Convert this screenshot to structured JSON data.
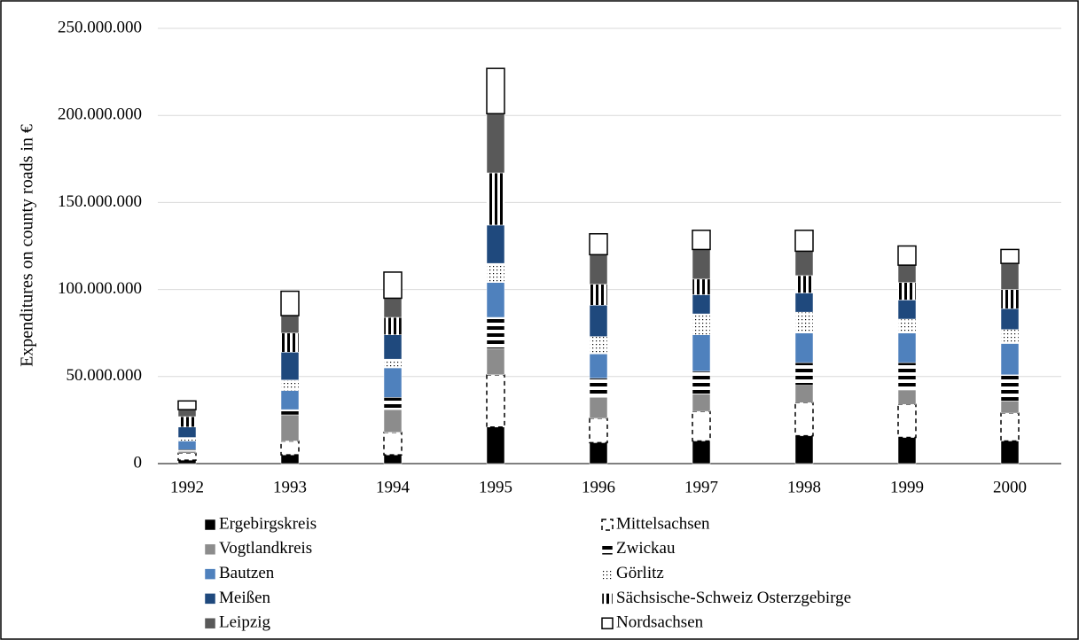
{
  "chart_data": {
    "type": "stacked-bar",
    "y_label": "Expenditures on county roads in €",
    "categories": [
      "1992",
      "1993",
      "1994",
      "1995",
      "1996",
      "1997",
      "1998",
      "1999",
      "2000"
    ],
    "ylim": [
      0,
      250000000
    ],
    "yticks": [
      0,
      {
        "value": 50000000,
        "label": "50.000.000"
      },
      {
        "value": 100000000,
        "label": "100.000.000"
      },
      {
        "value": 150000000,
        "label": "150.000.000"
      },
      {
        "value": 200000000,
        "label": "200.000.000"
      },
      {
        "value": 250000000,
        "label": "250.000.000"
      }
    ],
    "grid": true,
    "legend": "bottom",
    "series": [
      {
        "name": "Ergebirgskreis",
        "color": "#000000",
        "pattern": "solid",
        "values": [
          2000000,
          5000000,
          5000000,
          21000000,
          12000000,
          13000000,
          16000000,
          15000000,
          13000000
        ]
      },
      {
        "name": "Mittelsachsen",
        "color": "#ffffff",
        "pattern": "dash-outline",
        "values": [
          4000000,
          8000000,
          13000000,
          30000000,
          14000000,
          17000000,
          19000000,
          19000000,
          16000000
        ]
      },
      {
        "name": "Vogtlandkreis",
        "color": "#8c8c8c",
        "pattern": "solid",
        "values": [
          1000000,
          15000000,
          13000000,
          15000000,
          12000000,
          10000000,
          10000000,
          8000000,
          7000000
        ]
      },
      {
        "name": "Zwickau",
        "color": "#000000",
        "pattern": "hstripe",
        "values": [
          1000000,
          3000000,
          7000000,
          18000000,
          11000000,
          13000000,
          13000000,
          16000000,
          15000000
        ]
      },
      {
        "name": "Bautzen",
        "color": "#4f81bd",
        "pattern": "solid",
        "values": [
          5000000,
          11000000,
          17000000,
          20000000,
          14000000,
          21000000,
          17000000,
          17000000,
          18000000
        ]
      },
      {
        "name": "Görlitz",
        "color": "#000000",
        "pattern": "dots",
        "values": [
          2000000,
          6000000,
          5000000,
          11000000,
          10000000,
          12000000,
          12000000,
          8000000,
          8000000
        ]
      },
      {
        "name": "Meißen",
        "color": "#1f497d",
        "pattern": "solid",
        "values": [
          6000000,
          16000000,
          14000000,
          22000000,
          18000000,
          11000000,
          11000000,
          11000000,
          12000000
        ]
      },
      {
        "name": "Sächsische-Schweiz Osterzgebirge",
        "color": "#000000",
        "pattern": "vstripe",
        "values": [
          6000000,
          11000000,
          10000000,
          30000000,
          12000000,
          9000000,
          10000000,
          10000000,
          11000000
        ]
      },
      {
        "name": "Leipzig",
        "color": "#595959",
        "pattern": "solid",
        "values": [
          4000000,
          10000000,
          11000000,
          34000000,
          17000000,
          17000000,
          14000000,
          10000000,
          15000000
        ]
      },
      {
        "name": "Nordsachsen",
        "color": "#ffffff",
        "pattern": "outline",
        "values": [
          5000000,
          14000000,
          15000000,
          26000000,
          12000000,
          11000000,
          12000000,
          11000000,
          8000000
        ]
      }
    ]
  }
}
